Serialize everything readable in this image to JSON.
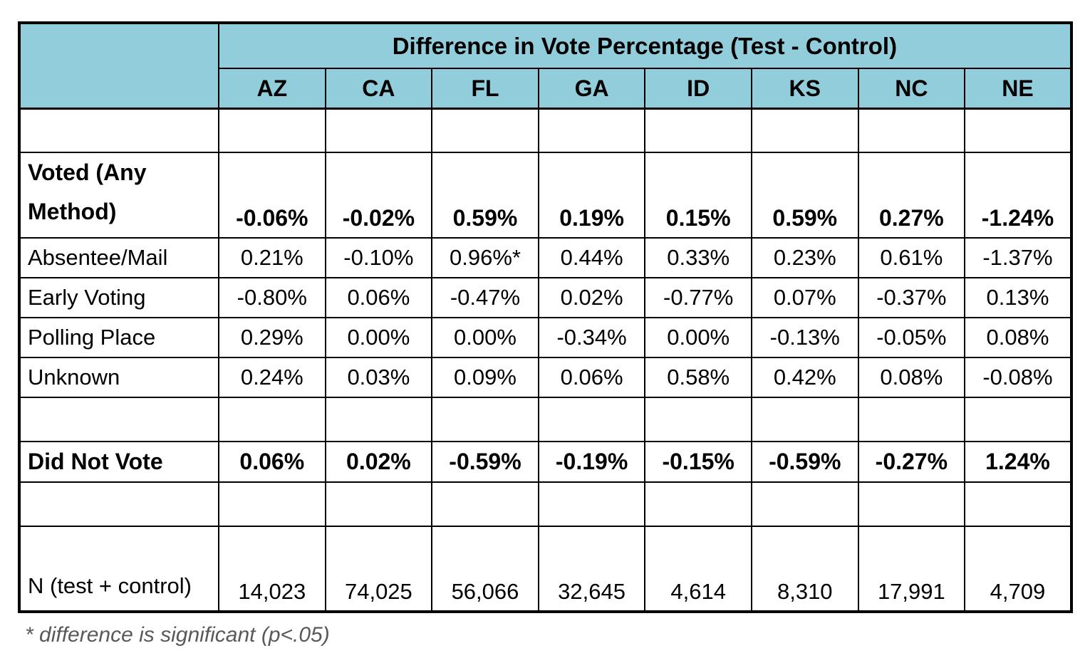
{
  "table": {
    "title": "Difference in Vote Percentage (Test - Control)",
    "state_columns": [
      "AZ",
      "CA",
      "FL",
      "GA",
      "ID",
      "KS",
      "NC",
      "NE"
    ],
    "rows": [
      {
        "label": "",
        "type": "empty",
        "values": [
          "",
          "",
          "",
          "",
          "",
          "",
          "",
          ""
        ]
      },
      {
        "label": "Voted (Any Method)",
        "type": "bold-tall",
        "values": [
          "-0.06%",
          "-0.02%",
          "0.59%",
          "0.19%",
          "0.15%",
          "0.59%",
          "0.27%",
          "-1.24%"
        ]
      },
      {
        "label": "Absentee/Mail",
        "type": "normal",
        "values": [
          "0.21%",
          "-0.10%",
          "0.96%*",
          "0.44%",
          "0.33%",
          "0.23%",
          "0.61%",
          "-1.37%"
        ]
      },
      {
        "label": "Early Voting",
        "type": "normal",
        "values": [
          "-0.80%",
          "0.06%",
          "-0.47%",
          "0.02%",
          "-0.77%",
          "0.07%",
          "-0.37%",
          "0.13%"
        ]
      },
      {
        "label": "Polling Place",
        "type": "normal",
        "values": [
          "0.29%",
          "0.00%",
          "0.00%",
          "-0.34%",
          "0.00%",
          "-0.13%",
          "-0.05%",
          "0.08%"
        ]
      },
      {
        "label": "Unknown",
        "type": "normal",
        "values": [
          "0.24%",
          "0.03%",
          "0.09%",
          "0.06%",
          "0.58%",
          "0.42%",
          "0.08%",
          "-0.08%"
        ]
      },
      {
        "label": "",
        "type": "empty",
        "values": [
          "",
          "",
          "",
          "",
          "",
          "",
          "",
          ""
        ]
      },
      {
        "label": "Did Not Vote",
        "type": "bold",
        "values": [
          "0.06%",
          "0.02%",
          "-0.59%",
          "-0.19%",
          "-0.15%",
          "-0.59%",
          "-0.27%",
          "1.24%"
        ]
      },
      {
        "label": "",
        "type": "empty",
        "values": [
          "",
          "",
          "",
          "",
          "",
          "",
          "",
          ""
        ]
      },
      {
        "label": "N (test + control)",
        "type": "tall",
        "values": [
          "14,023",
          "74,025",
          "56,066",
          "32,645",
          "4,614",
          "8,310",
          "17,991",
          "4,709"
        ]
      }
    ],
    "footnote": "* difference is significant (p<.05)"
  },
  "colors": {
    "header_bg": "#92CDDC",
    "border": "#000000",
    "text": "#000000",
    "footnote_text": "#595959"
  }
}
